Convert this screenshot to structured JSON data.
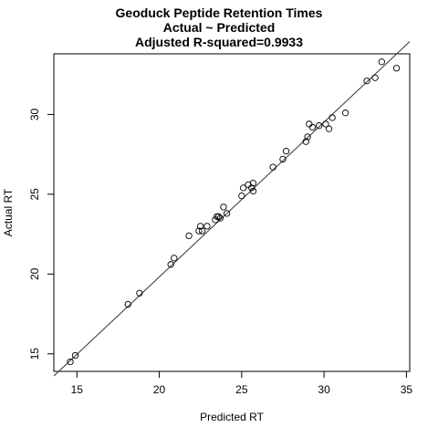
{
  "chart_data": {
    "type": "scatter",
    "title": [
      "Geoduck Peptide Retention Times",
      "Actual ~ Predicted",
      "Adjusted R-squared=0.9933"
    ],
    "xlabel": "Predicted RT",
    "ylabel": "Actual RT",
    "xlim": [
      13.6,
      35.2
    ],
    "ylim": [
      13.9,
      33.8
    ],
    "xticks": [
      15,
      20,
      25,
      30,
      35
    ],
    "yticks": [
      15,
      20,
      25,
      30
    ],
    "grid": false,
    "legend": "none",
    "marker": "open-circle",
    "fit_line": {
      "intercept": 0.42,
      "slope": 0.97
    },
    "points": [
      {
        "x": 14.6,
        "y": 14.5
      },
      {
        "x": 14.9,
        "y": 14.9
      },
      {
        "x": 18.1,
        "y": 18.1
      },
      {
        "x": 18.8,
        "y": 18.8
      },
      {
        "x": 20.7,
        "y": 20.6
      },
      {
        "x": 20.9,
        "y": 21.0
      },
      {
        "x": 21.8,
        "y": 22.4
      },
      {
        "x": 22.4,
        "y": 22.7
      },
      {
        "x": 22.5,
        "y": 23.0
      },
      {
        "x": 22.6,
        "y": 22.7
      },
      {
        "x": 22.9,
        "y": 23.0
      },
      {
        "x": 23.4,
        "y": 23.4
      },
      {
        "x": 23.5,
        "y": 23.6
      },
      {
        "x": 23.6,
        "y": 23.6
      },
      {
        "x": 23.7,
        "y": 23.5
      },
      {
        "x": 23.9,
        "y": 24.2
      },
      {
        "x": 24.1,
        "y": 23.8
      },
      {
        "x": 25.0,
        "y": 24.9
      },
      {
        "x": 25.1,
        "y": 25.4
      },
      {
        "x": 25.4,
        "y": 25.6
      },
      {
        "x": 25.6,
        "y": 25.4
      },
      {
        "x": 25.7,
        "y": 25.7
      },
      {
        "x": 25.7,
        "y": 25.2
      },
      {
        "x": 26.9,
        "y": 26.7
      },
      {
        "x": 27.5,
        "y": 27.2
      },
      {
        "x": 27.7,
        "y": 27.7
      },
      {
        "x": 28.9,
        "y": 28.3
      },
      {
        "x": 29.0,
        "y": 28.6
      },
      {
        "x": 29.1,
        "y": 29.4
      },
      {
        "x": 29.3,
        "y": 29.2
      },
      {
        "x": 29.7,
        "y": 29.3
      },
      {
        "x": 30.1,
        "y": 29.4
      },
      {
        "x": 30.3,
        "y": 29.1
      },
      {
        "x": 30.5,
        "y": 29.8
      },
      {
        "x": 31.3,
        "y": 30.1
      },
      {
        "x": 32.6,
        "y": 32.1
      },
      {
        "x": 33.1,
        "y": 32.3
      },
      {
        "x": 33.5,
        "y": 33.3
      },
      {
        "x": 34.4,
        "y": 32.9
      }
    ]
  }
}
